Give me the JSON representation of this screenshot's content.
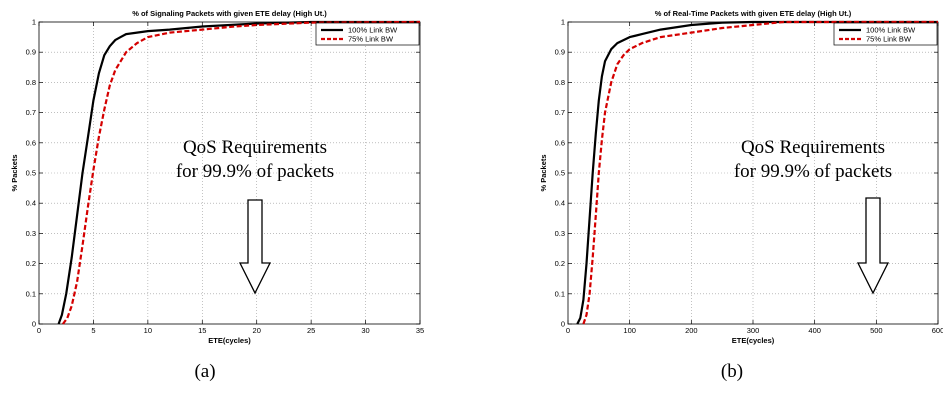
{
  "chart_data": [
    {
      "type": "line",
      "title": "% of Signaling Packets with given ETE delay (High Ut.)",
      "xlabel": "ETE(cycles)",
      "ylabel": "% Packets",
      "xlim": [
        0,
        35
      ],
      "ylim": [
        0,
        1
      ],
      "xticks": [
        "0",
        "5",
        "10",
        "15",
        "20",
        "25",
        "30",
        "35"
      ],
      "yticks": [
        "0",
        "0.1",
        "0.2",
        "0.3",
        "0.4",
        "0.5",
        "0.6",
        "0.7",
        "0.8",
        "0.9",
        "1"
      ],
      "grid": true,
      "legend_position": "top-right",
      "series": [
        {
          "name": "100% Link BW",
          "color": "#000000",
          "style": "solid",
          "x": [
            1.8,
            2.1,
            2.5,
            3.0,
            3.5,
            4.0,
            4.5,
            5.0,
            5.5,
            6.0,
            6.5,
            7.0,
            7.5,
            8.0,
            9.0,
            10.0,
            12.0,
            15.0,
            20.0,
            25.0,
            35.0
          ],
          "y": [
            0.0,
            0.03,
            0.1,
            0.22,
            0.36,
            0.5,
            0.62,
            0.74,
            0.83,
            0.89,
            0.92,
            0.94,
            0.95,
            0.96,
            0.965,
            0.97,
            0.975,
            0.985,
            0.995,
            1.0,
            1.0
          ]
        },
        {
          "name": "75% Link BW",
          "color": "#d40000",
          "style": "dashed",
          "x": [
            2.2,
            2.6,
            3.0,
            3.5,
            4.0,
            4.5,
            5.0,
            5.5,
            6.0,
            6.5,
            7.0,
            7.5,
            8.0,
            9.0,
            10.0,
            12.0,
            15.0,
            18.0,
            20.0,
            25.0,
            35.0
          ],
          "y": [
            0.0,
            0.02,
            0.06,
            0.14,
            0.26,
            0.39,
            0.51,
            0.62,
            0.71,
            0.79,
            0.84,
            0.87,
            0.9,
            0.93,
            0.95,
            0.965,
            0.975,
            0.985,
            0.99,
            0.998,
            1.0
          ]
        }
      ],
      "annotation": [
        "QoS Requirements",
        "for 99.9% of packets"
      ],
      "caption": "(a)"
    },
    {
      "type": "line",
      "title": "% of Real-Time Packets with given ETE delay (High Ut.)",
      "xlabel": "ETE(cycles)",
      "ylabel": "% Packets",
      "xlim": [
        0,
        600
      ],
      "ylim": [
        0,
        1
      ],
      "xticks": [
        "0",
        "100",
        "200",
        "300",
        "400",
        "500",
        "600"
      ],
      "yticks": [
        "0",
        "0.1",
        "0.2",
        "0.3",
        "0.4",
        "0.5",
        "0.6",
        "0.7",
        "0.8",
        "0.9",
        "1"
      ],
      "grid": true,
      "legend_position": "top-right",
      "series": [
        {
          "name": "100% Link BW",
          "color": "#000000",
          "style": "solid",
          "x": [
            15,
            20,
            25,
            30,
            35,
            40,
            45,
            50,
            55,
            60,
            70,
            80,
            90,
            100,
            120,
            150,
            200,
            250,
            300,
            600
          ],
          "y": [
            0.0,
            0.02,
            0.08,
            0.2,
            0.35,
            0.5,
            0.63,
            0.74,
            0.82,
            0.87,
            0.91,
            0.93,
            0.94,
            0.95,
            0.96,
            0.975,
            0.99,
            0.998,
            1.0,
            1.0
          ]
        },
        {
          "name": "75% Link BW",
          "color": "#d40000",
          "style": "dashed",
          "x": [
            25,
            30,
            35,
            40,
            45,
            50,
            55,
            60,
            70,
            80,
            90,
            100,
            120,
            150,
            200,
            250,
            300,
            350,
            600
          ],
          "y": [
            0.0,
            0.03,
            0.1,
            0.22,
            0.36,
            0.5,
            0.61,
            0.7,
            0.8,
            0.86,
            0.89,
            0.91,
            0.93,
            0.95,
            0.965,
            0.98,
            0.99,
            1.0,
            1.0
          ]
        }
      ],
      "annotation": [
        "QoS Requirements",
        "for 99.9% of packets"
      ],
      "caption": "(b)"
    }
  ]
}
